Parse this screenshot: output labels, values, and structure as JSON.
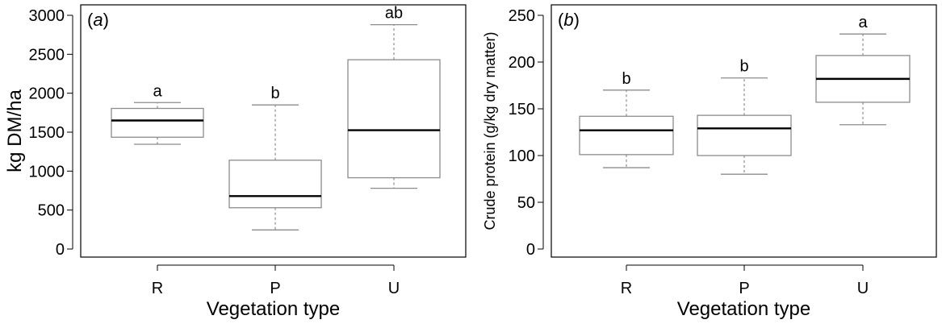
{
  "chart_data": [
    {
      "type": "boxplot",
      "panel_label": "(a)",
      "panel_prefix": "(",
      "panel_letter": "a",
      "panel_suffix": ")",
      "xlabel": "Vegetation type",
      "ylabel": "kg DM/ha",
      "ylim": [
        0,
        3000
      ],
      "yticks": [
        0,
        500,
        1000,
        1500,
        2000,
        2500,
        3000
      ],
      "categories": [
        "R",
        "P",
        "U"
      ],
      "boxes": [
        {
          "category": "R",
          "whisker_low": 1345,
          "q1": 1435,
          "median": 1650,
          "q3": 1805,
          "whisker_high": 1880,
          "significance": "a"
        },
        {
          "category": "P",
          "whisker_low": 245,
          "q1": 530,
          "median": 680,
          "q3": 1140,
          "whisker_high": 1850,
          "significance": "b"
        },
        {
          "category": "U",
          "whisker_low": 780,
          "q1": 915,
          "median": 1525,
          "q3": 2430,
          "whisker_high": 2880,
          "significance": "ab"
        }
      ]
    },
    {
      "type": "boxplot",
      "panel_label": "(b)",
      "panel_prefix": "(",
      "panel_letter": "b",
      "panel_suffix": ")",
      "xlabel": "Vegetation type",
      "ylabel": "Crude protein (g/kg dry matter)",
      "ylim": [
        0,
        250
      ],
      "yticks": [
        0,
        50,
        100,
        150,
        200,
        250
      ],
      "categories": [
        "R",
        "P",
        "U"
      ],
      "boxes": [
        {
          "category": "R",
          "whisker_low": 87,
          "q1": 101,
          "median": 127,
          "q3": 142,
          "whisker_high": 170,
          "significance": "b"
        },
        {
          "category": "P",
          "whisker_low": 80,
          "q1": 100,
          "median": 129,
          "q3": 143,
          "whisker_high": 183,
          "significance": "b"
        },
        {
          "category": "U",
          "whisker_low": 133,
          "q1": 157,
          "median": 182,
          "q3": 207,
          "whisker_high": 230,
          "significance": "a"
        }
      ]
    }
  ]
}
